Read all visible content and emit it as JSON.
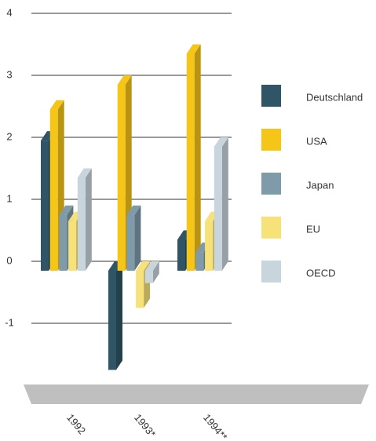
{
  "chart_data": {
    "type": "bar3d",
    "categories": [
      "1992",
      "1993*",
      "1994**"
    ],
    "series": [
      {
        "name": "Deutschland",
        "color": "#2f5566",
        "values": [
          2.1,
          -1.6,
          0.5
        ]
      },
      {
        "name": "USA",
        "color": "#f5c518",
        "values": [
          2.6,
          3.0,
          3.5
        ]
      },
      {
        "name": "Japan",
        "color": "#7f9aa8",
        "values": [
          0.9,
          0.9,
          0.3
        ]
      },
      {
        "name": "EU",
        "color": "#f7e27a",
        "values": [
          0.8,
          -0.6,
          0.8
        ]
      },
      {
        "name": "OECD",
        "color": "#c9d5dc",
        "values": [
          1.5,
          -0.2,
          2.0
        ]
      }
    ],
    "ylim": [
      -1.6,
      4
    ],
    "yticks": [
      4,
      3,
      2,
      1,
      0,
      -1
    ],
    "grid": true,
    "legend": "right"
  }
}
